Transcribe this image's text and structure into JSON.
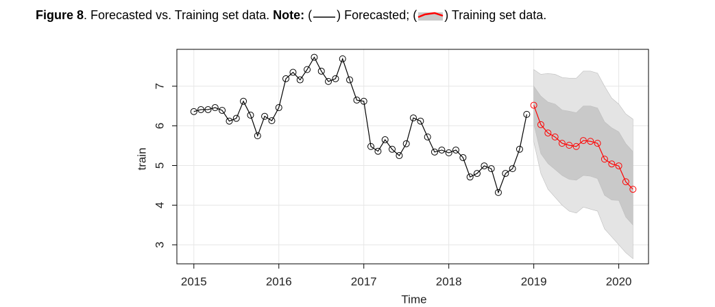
{
  "chart_data": {
    "type": "line",
    "caption": [
      "Figure 8",
      ". Forecasted vs. Training set data. ",
      "Note:",
      " (",
      ") ",
      "; (",
      ") ",
      "."
    ],
    "x_label": "Time",
    "y_label": "train",
    "xlim": [
      2014.8,
      2020.35
    ],
    "ylim": [
      2.52,
      7.93
    ],
    "xticks": [
      2015,
      2016,
      2017,
      2018,
      2019,
      2020
    ],
    "yticks": [
      3,
      4,
      5,
      6,
      7
    ],
    "grid": true,
    "series": [
      {
        "name": "Forecasted",
        "color": "#000000",
        "x": [
          2015,
          2015.083,
          2015.167,
          2015.25,
          2015.333,
          2015.417,
          2015.5,
          2015.583,
          2015.667,
          2015.75,
          2015.833,
          2015.917,
          2016,
          2016.083,
          2016.167,
          2016.25,
          2016.333,
          2016.417,
          2016.5,
          2016.583,
          2016.667,
          2016.75,
          2016.833,
          2016.917,
          2017,
          2017.083,
          2017.167,
          2017.25,
          2017.333,
          2017.417,
          2017.5,
          2017.583,
          2017.667,
          2017.75,
          2017.833,
          2017.917,
          2018,
          2018.083,
          2018.167,
          2018.25,
          2018.333,
          2018.417,
          2018.5,
          2018.583,
          2018.667,
          2018.75,
          2018.833,
          2018.917
        ],
        "values": [
          6.36,
          6.41,
          6.41,
          6.46,
          6.39,
          6.12,
          6.19,
          6.62,
          6.27,
          5.75,
          6.24,
          6.13,
          6.46,
          7.19,
          7.35,
          7.16,
          7.42,
          7.73,
          7.38,
          7.12,
          7.19,
          7.69,
          7.16,
          6.65,
          6.62,
          5.48,
          5.36,
          5.65,
          5.41,
          5.25,
          5.55,
          6.2,
          6.12,
          5.72,
          5.34,
          5.39,
          5.32,
          5.39,
          5.2,
          4.71,
          4.8,
          4.99,
          4.92,
          4.32,
          4.8,
          4.92,
          5.41,
          6.29
        ]
      },
      {
        "name": "Training set data",
        "color": "#ff0000",
        "x": [
          2019,
          2019.083,
          2019.167,
          2019.25,
          2019.333,
          2019.417,
          2019.5,
          2019.583,
          2019.667,
          2019.75,
          2019.833,
          2019.917,
          2020,
          2020.083,
          2020.167
        ],
        "values": [
          6.52,
          6.03,
          5.82,
          5.72,
          5.56,
          5.51,
          5.48,
          5.63,
          5.61,
          5.56,
          5.16,
          5.04,
          4.99,
          4.59,
          4.4
        ]
      }
    ],
    "intervals": [
      {
        "color": "#e4e4e4",
        "upper": [
          7.42,
          7.3,
          7.32,
          7.3,
          7.22,
          7.2,
          7.2,
          7.38,
          7.38,
          7.33,
          7.0,
          6.7,
          6.55,
          6.3,
          6.17
        ],
        "lower": [
          5.6,
          4.8,
          4.4,
          4.2,
          4.0,
          3.85,
          3.8,
          3.95,
          3.9,
          3.85,
          3.4,
          3.2,
          3.0,
          2.8,
          2.65
        ]
      },
      {
        "color": "#c9c9c9",
        "upper": [
          7.0,
          6.75,
          6.6,
          6.55,
          6.4,
          6.37,
          6.33,
          6.5,
          6.5,
          6.45,
          6.1,
          5.95,
          5.85,
          5.55,
          5.35
        ],
        "lower": [
          6.05,
          5.3,
          5.05,
          4.9,
          4.75,
          4.65,
          4.63,
          4.75,
          4.73,
          4.67,
          4.25,
          4.13,
          4.12,
          3.7,
          3.5
        ]
      }
    ]
  }
}
